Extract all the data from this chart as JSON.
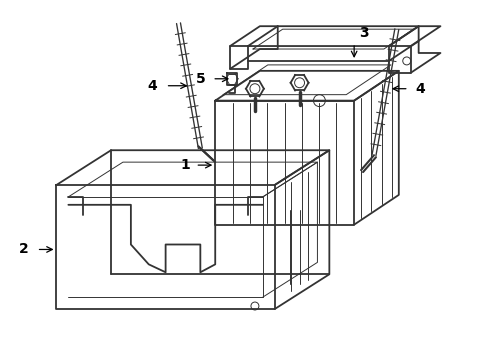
{
  "background_color": "#ffffff",
  "line_color": "#333333",
  "label_color": "#000000",
  "lw": 1.3,
  "thin_lw": 0.7,
  "fig_width": 4.89,
  "fig_height": 3.6,
  "dpi": 100
}
